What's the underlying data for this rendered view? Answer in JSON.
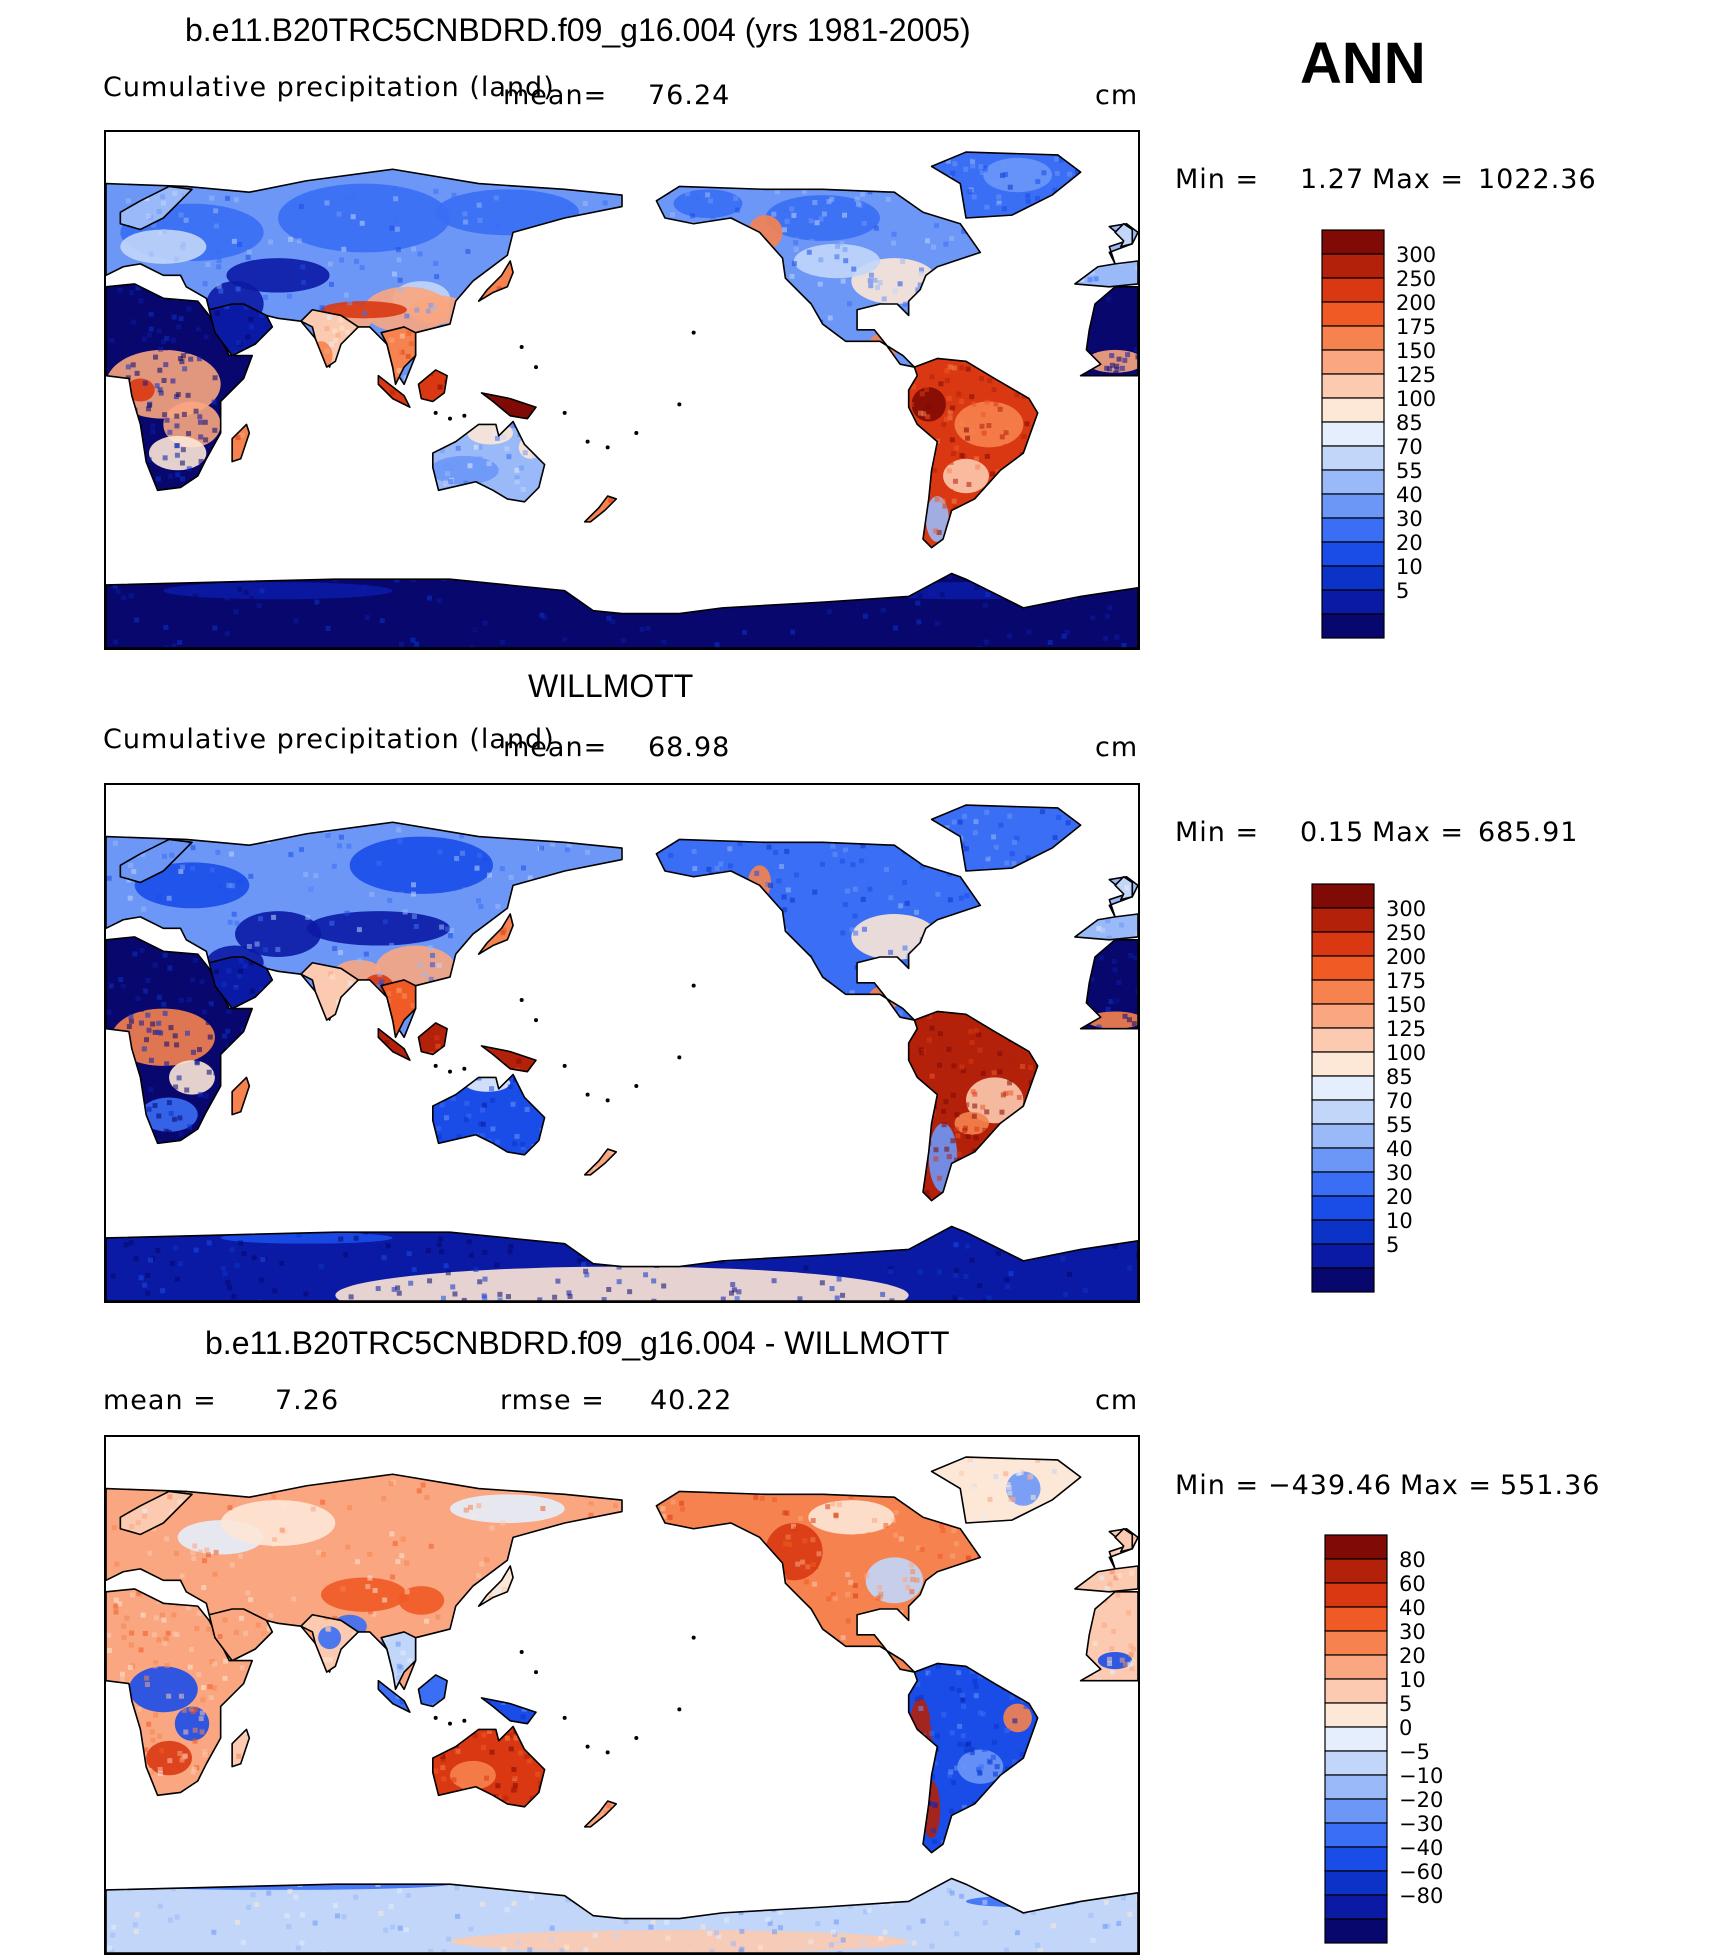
{
  "season": "ANN",
  "colors": {
    "precip": [
      "#08076e",
      "#0b1aa4",
      "#0b33c8",
      "#1a4de8",
      "#3a6ef4",
      "#6c97f7",
      "#9ab9f8",
      "#c2d6f9",
      "#e4eefc",
      "#fde7d6",
      "#fccab0",
      "#faa680",
      "#f6834f",
      "#f05a25",
      "#d93812",
      "#b3210a",
      "#7f0a06"
    ],
    "diff": [
      "#08076e",
      "#0b1aa4",
      "#0b33c8",
      "#1a4de8",
      "#3a6ef4",
      "#6c97f7",
      "#9ab9f8",
      "#c2d6f9",
      "#e4eefc",
      "#fde7d6",
      "#fccab0",
      "#faa680",
      "#f6834f",
      "#f05a25",
      "#d93812",
      "#b3210a",
      "#7f0a06"
    ]
  },
  "panels": [
    {
      "title": "b.e11.B20TRC5CNBDRD.f09_g16.004 (yrs 1981-2005)",
      "left_label": "Cumulative precipitation (land)",
      "stat_label": "mean=",
      "stat_value": "76.24",
      "rmse_label": "",
      "rmse_value": "",
      "units": "cm",
      "min_label": "Min =",
      "min_value": "1.27",
      "max_label": "Max =",
      "max_value": "1022.36",
      "colorbar_labels": [
        "300",
        "250",
        "200",
        "175",
        "150",
        "125",
        "100",
        "85",
        "70",
        "55",
        "40",
        "30",
        "20",
        "10",
        "5"
      ],
      "palette": "precip",
      "scheme": "model"
    },
    {
      "title": "WILLMOTT",
      "left_label": "Cumulative precipitation (land)",
      "stat_label": "mean=",
      "stat_value": "68.98",
      "rmse_label": "",
      "rmse_value": "",
      "units": "cm",
      "min_label": "Min =",
      "min_value": "0.15",
      "max_label": "Max =",
      "max_value": "685.91",
      "colorbar_labels": [
        "300",
        "250",
        "200",
        "175",
        "150",
        "125",
        "100",
        "85",
        "70",
        "55",
        "40",
        "30",
        "20",
        "10",
        "5"
      ],
      "palette": "precip",
      "scheme": "obs"
    },
    {
      "title": "b.e11.B20TRC5CNBDRD.f09_g16.004 - WILLMOTT",
      "left_label": "mean =",
      "stat_label": "",
      "stat_value": "7.26",
      "rmse_label": "rmse =",
      "rmse_value": "40.22",
      "units": "cm",
      "min_label": "Min =",
      "min_value": "−439.46",
      "max_label": "Max =",
      "max_value": "551.36",
      "colorbar_labels": [
        "80",
        "60",
        "40",
        "30",
        "20",
        "10",
        "5",
        "0",
        "−5",
        "−10",
        "−20",
        "−30",
        "−40",
        "−60",
        "−80"
      ],
      "palette": "diff",
      "scheme": "diff"
    }
  ]
}
